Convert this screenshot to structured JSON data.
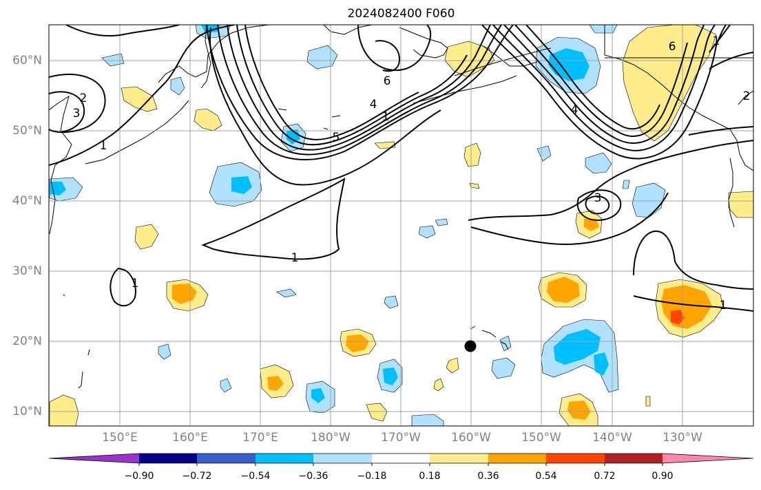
{
  "title": "2024082400 F060",
  "map": {
    "lat_labels": [
      "60°N",
      "50°N",
      "40°N",
      "30°N",
      "20°N",
      "10°N"
    ],
    "lon_labels": [
      "150°E",
      "160°E",
      "170°E",
      "180°W",
      "170°W",
      "160°W",
      "150°W",
      "140°W",
      "130°W"
    ],
    "contour_labels": [
      "2",
      "3",
      "1",
      "6",
      "4",
      "5",
      "1",
      "3",
      "1",
      "1",
      "1",
      "6",
      "1",
      "4",
      "2"
    ],
    "marker": {
      "lat": 19.3,
      "lon": -160.0,
      "icon": "black-dot-marker"
    }
  },
  "colorbar": {
    "ticks": [
      "−0.90",
      "−0.72",
      "−0.54",
      "−0.36",
      "−0.18",
      "0.18",
      "0.36",
      "0.54",
      "0.72",
      "0.90"
    ],
    "colors": [
      "#9933cc",
      "#00008b",
      "#3a5fcd",
      "#00bfff",
      "#b0e2ff",
      "#ffffff",
      "#ffec8b",
      "#ffa500",
      "#ff4500",
      "#b22222",
      "#ff88aa"
    ]
  },
  "colors": {
    "contour": "#000000",
    "grid": "#a0a0a0",
    "axis_label": "#808080"
  }
}
